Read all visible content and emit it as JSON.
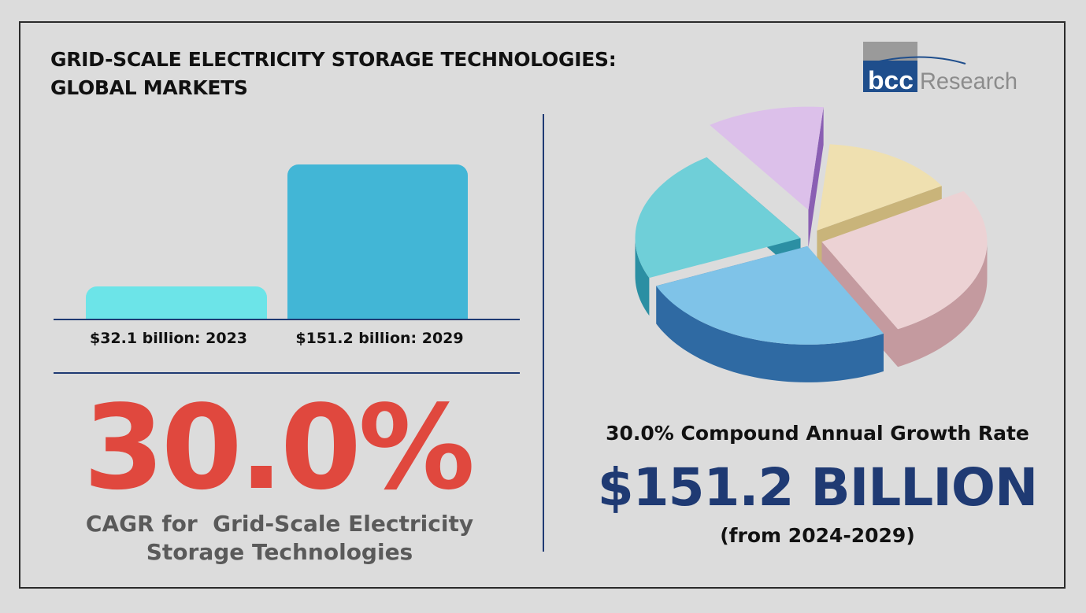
{
  "header": {
    "title_line1": "GRID-SCALE ELECTRICITY STORAGE TECHNOLOGIES:",
    "title_line2": "GLOBAL MARKETS"
  },
  "logo": {
    "text_mark": "bcc",
    "text_word": "Research",
    "blue": "#1f4e8c",
    "gray": "#8c8c8c"
  },
  "chart_data": {
    "type": "bar",
    "categories": [
      "2023",
      "2029"
    ],
    "values": [
      32.1,
      151.2
    ],
    "labels": [
      "$32.1 billion: 2023",
      "$151.2 billion: 2029"
    ],
    "colors": [
      "#6ce4e8",
      "#42b6d6"
    ],
    "title": "",
    "xlabel": "",
    "ylabel": "",
    "ylim": [
      0,
      151.2
    ],
    "grid": false
  },
  "headline": {
    "cagr_value": "30.0%",
    "cagr_caption_line1": "CAGR for  Grid-Scale Electricity",
    "cagr_caption_line2": "Storage Technologies",
    "red": "#e0483e"
  },
  "summary": {
    "growth_line": "30.0% Compound Annual Growth Rate",
    "market_value": "$151.2 BILLION",
    "period": "(from 2024-2029)",
    "navy": "#1f3a73"
  },
  "pie_illustration": {
    "slices": [
      {
        "color_top": "#efe0b0",
        "color_side": "#c9b47a",
        "fraction": 0.15
      },
      {
        "color_top": "#ecd2d4",
        "color_side": "#c49a9f",
        "fraction": 0.26
      },
      {
        "color_top": "#7fc3e8",
        "color_side": "#2f6aa3",
        "fraction": 0.26
      },
      {
        "color_top": "#6fcfd8",
        "color_side": "#2b8fa3",
        "fraction": 0.22
      },
      {
        "color_top": "#dcc0ea",
        "color_side": "#8a5fb3",
        "fraction": 0.11
      }
    ]
  }
}
